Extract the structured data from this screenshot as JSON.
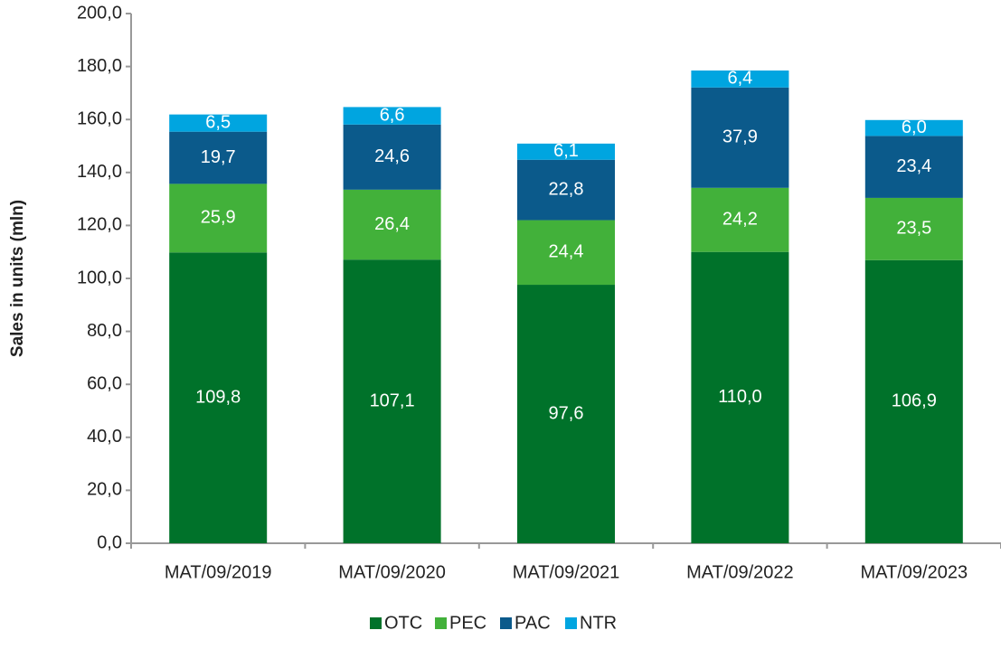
{
  "chart_data": {
    "type": "stacked_bar",
    "y_label": "Sales in units (mln)",
    "categories": [
      "MAT/09/2019",
      "MAT/09/2020",
      "MAT/09/2021",
      "MAT/09/2022",
      "MAT/09/2023"
    ],
    "series": [
      {
        "name": "OTC",
        "color": "#00722a",
        "values": [
          109.8,
          107.1,
          97.6,
          110.0,
          106.9
        ],
        "value_labels": [
          "109,8",
          "107,1",
          "97,6",
          "110,0",
          "106,9"
        ]
      },
      {
        "name": "PEC",
        "color": "#42b13a",
        "values": [
          25.9,
          26.4,
          24.4,
          24.2,
          23.5
        ],
        "value_labels": [
          "25,9",
          "26,4",
          "24,4",
          "24,2",
          "23,5"
        ]
      },
      {
        "name": "PAC",
        "color": "#0b5a8b",
        "values": [
          19.7,
          24.6,
          22.8,
          37.9,
          23.4
        ],
        "value_labels": [
          "19,7",
          "24,6",
          "22,8",
          "37,9",
          "23,4"
        ]
      },
      {
        "name": "NTR",
        "color": "#00a5e0",
        "values": [
          6.5,
          6.6,
          6.1,
          6.4,
          6.0
        ],
        "value_labels": [
          "6,5",
          "6,6",
          "6,1",
          "6,4",
          "6,0"
        ]
      }
    ],
    "ylim": [
      0,
      200
    ],
    "yticks": [
      {
        "value": 0,
        "label": "0,0"
      },
      {
        "value": 20,
        "label": "20,0"
      },
      {
        "value": 40,
        "label": "40,0"
      },
      {
        "value": 60,
        "label": "60,0"
      },
      {
        "value": 80,
        "label": "80,0"
      },
      {
        "value": 100,
        "label": "100,0"
      },
      {
        "value": 120,
        "label": "120,0"
      },
      {
        "value": 140,
        "label": "140,0"
      },
      {
        "value": 160,
        "label": "160,0"
      },
      {
        "value": 180,
        "label": "180,0"
      },
      {
        "value": 200,
        "label": "200,0"
      }
    ],
    "legend": "bottom"
  }
}
